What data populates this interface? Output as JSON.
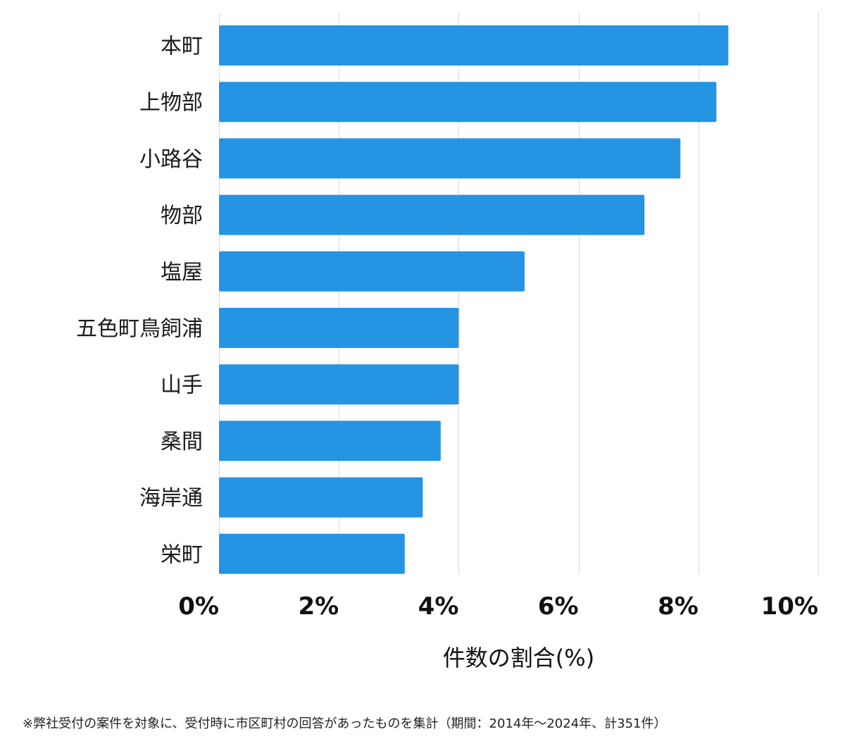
{
  "chart_data": {
    "type": "bar",
    "orientation": "horizontal",
    "categories": [
      "本町",
      "上物部",
      "小路谷",
      "物部",
      "塩屋",
      "五色町鳥飼浦",
      "山手",
      "桑間",
      "海岸通",
      "栄町"
    ],
    "values": [
      8.5,
      8.3,
      7.7,
      7.1,
      5.1,
      4.0,
      4.0,
      3.7,
      3.4,
      3.1
    ],
    "xlabel": "件数の割合(%)",
    "ylabel": "",
    "xlim": [
      0,
      10
    ],
    "x_ticks": [
      0,
      2,
      4,
      6,
      8,
      10
    ],
    "x_tick_labels": [
      "0%",
      "2%",
      "4%",
      "6%",
      "8%",
      "10%"
    ],
    "grid": true,
    "bar_color": "#2594e3"
  },
  "footnote": "※弊社受付の案件を対象に、受付時に市区町村の回答があったものを集計（期間：2014年～2024年、計351件）"
}
